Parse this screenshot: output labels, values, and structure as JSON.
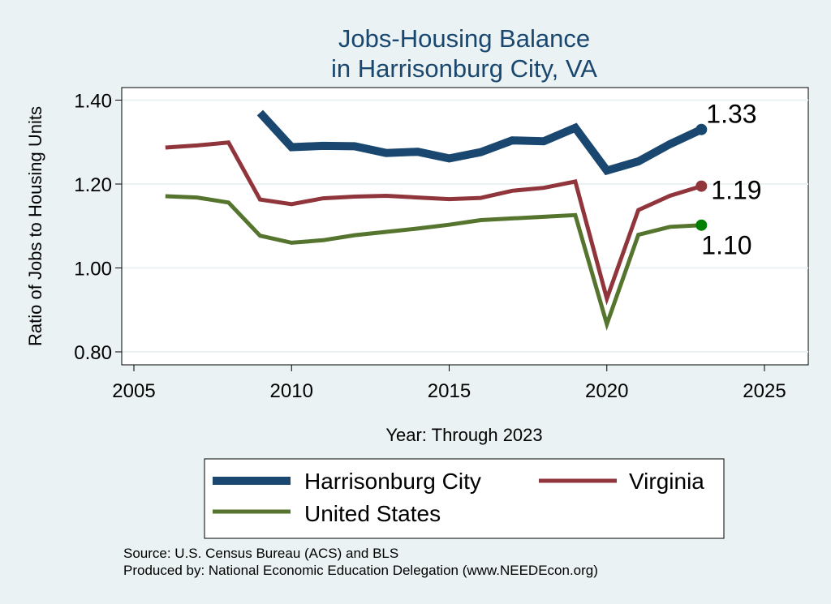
{
  "chart_data": {
    "type": "line",
    "title": [
      "Jobs-Housing Balance",
      "in Harrisonburg City, VA"
    ],
    "xlabel": "Year: Through 2023",
    "ylabel": "Ratio of Jobs to Housing Units",
    "xlim": [
      2005,
      2027
    ],
    "ylim": [
      0.77,
      1.42
    ],
    "xticks": [
      2005,
      2010,
      2015,
      2020,
      2025
    ],
    "xtick_labels": [
      "2005",
      "2010",
      "2015",
      "2020",
      "2025"
    ],
    "yticks": [
      0.8,
      1.0,
      1.2,
      1.4
    ],
    "ytick_labels": [
      "0.80",
      "1.00",
      "1.20",
      "1.40"
    ],
    "grid": true,
    "legend_position": "bottom",
    "series": [
      {
        "name": "Harrisonburg City",
        "color": "#1a476f",
        "x": [
          2009,
          2010,
          2011,
          2012,
          2013,
          2014,
          2015,
          2016,
          2017,
          2018,
          2019,
          2020,
          2021,
          2022,
          2023
        ],
        "values": [
          1.37,
          1.288,
          1.291,
          1.29,
          1.274,
          1.277,
          1.261,
          1.276,
          1.304,
          1.302,
          1.334,
          1.232,
          1.254,
          1.295,
          1.33
        ],
        "end_label": "1.33",
        "end_marker_color": "#1a476f"
      },
      {
        "name": "Virginia",
        "color": "#90353b",
        "x": [
          2006,
          2007,
          2008,
          2009,
          2010,
          2011,
          2012,
          2013,
          2014,
          2015,
          2016,
          2017,
          2018,
          2019,
          2020,
          2021,
          2022,
          2023
        ],
        "values": [
          1.287,
          1.292,
          1.299,
          1.163,
          1.152,
          1.166,
          1.17,
          1.172,
          1.168,
          1.164,
          1.167,
          1.184,
          1.191,
          1.206,
          0.927,
          1.138,
          1.172,
          1.195
        ],
        "end_label": "1.19",
        "end_marker_color": "#90353b"
      },
      {
        "name": "United States",
        "color": "#55752f",
        "x": [
          2006,
          2007,
          2008,
          2009,
          2010,
          2011,
          2012,
          2013,
          2014,
          2015,
          2016,
          2017,
          2018,
          2019,
          2020,
          2021,
          2022,
          2023
        ],
        "values": [
          1.171,
          1.168,
          1.156,
          1.077,
          1.06,
          1.066,
          1.078,
          1.086,
          1.094,
          1.103,
          1.114,
          1.118,
          1.122,
          1.126,
          0.866,
          1.079,
          1.098,
          1.102
        ],
        "end_label": "1.10",
        "end_marker_color": "#008000"
      }
    ]
  },
  "notes": {
    "source": "Source: U.S. Census Bureau (ACS) and BLS",
    "produced_by": "Produced by: National Economic Education Delegation (www.NEEDEcon.org)"
  }
}
